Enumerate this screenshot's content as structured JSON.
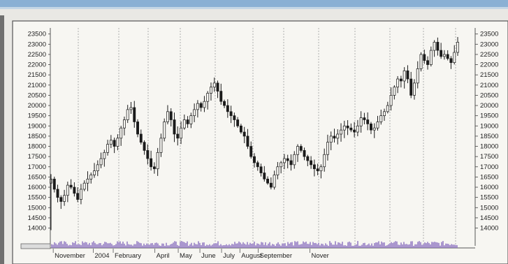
{
  "chart_data": {
    "type": "candlestick",
    "title": "",
    "xlabel": "",
    "ylabel": "",
    "ylim": [
      13300,
      23900
    ],
    "grid": {
      "vertical": true,
      "horizontal": false
    },
    "y_ticks": [
      14000,
      14500,
      15000,
      15500,
      16000,
      16500,
      17000,
      17500,
      18000,
      18500,
      19000,
      19500,
      20000,
      20500,
      21000,
      21500,
      22000,
      22500,
      23000,
      23500
    ],
    "y_tick_labels": [
      "14000",
      "14500",
      "15000",
      "15500",
      "16000",
      "16500",
      "17000",
      "17500",
      "18000",
      "18500",
      "19000",
      "19500",
      "20000",
      "20500",
      "21000",
      "21500",
      "22000",
      "22500",
      "23000",
      "23500"
    ],
    "x_labels": [
      "November",
      "2004",
      "February",
      "April",
      "May",
      "June",
      "July",
      "August",
      "September",
      "Nover"
    ],
    "x_label_weeks": [
      1.5,
      13.5,
      19.5,
      32,
      39,
      45.5,
      52,
      57.5,
      63,
      78.5
    ],
    "series": [
      {
        "weekly_close": [
          16400,
          15900,
          15500,
          15300,
          15600,
          16100,
          16000,
          15700,
          15400,
          15900,
          16200,
          16400,
          16600,
          16800,
          17100,
          17400,
          17700,
          18100,
          18300,
          18000,
          18400,
          18900,
          19300,
          19800,
          19900,
          19200,
          18600,
          18200,
          17800,
          17400,
          17000,
          16900,
          17700,
          18400,
          19200,
          19700,
          19300,
          18600,
          18400,
          18900,
          19300,
          19100,
          19500,
          19800,
          20100,
          19900,
          20200,
          20600,
          20900,
          21100,
          20700,
          20200,
          20000,
          19700,
          19500,
          19300,
          19000,
          18700,
          18500,
          18000,
          17500,
          17200,
          17000,
          16700,
          16400,
          16200,
          16000,
          16600,
          17000,
          17200,
          17400,
          17300,
          17100,
          17600,
          18000,
          17800,
          17500,
          17300,
          17100,
          16900,
          16800,
          17000,
          17600,
          18200,
          18500,
          18400,
          18600,
          18800,
          19000,
          18900,
          18800,
          18700,
          19000,
          19400,
          19300,
          19100,
          18800,
          18900,
          19200,
          19500,
          19700,
          20000,
          20500,
          20900,
          21300,
          21200,
          21700,
          21300,
          20500,
          21100,
          21800,
          22500,
          22200,
          22000,
          22700,
          23100,
          22700,
          22400,
          22500,
          22300,
          22100,
          22600,
          23100
        ]
      }
    ],
    "volume_color": "#8a6fbf",
    "grid_color": "#9c9c9c"
  }
}
